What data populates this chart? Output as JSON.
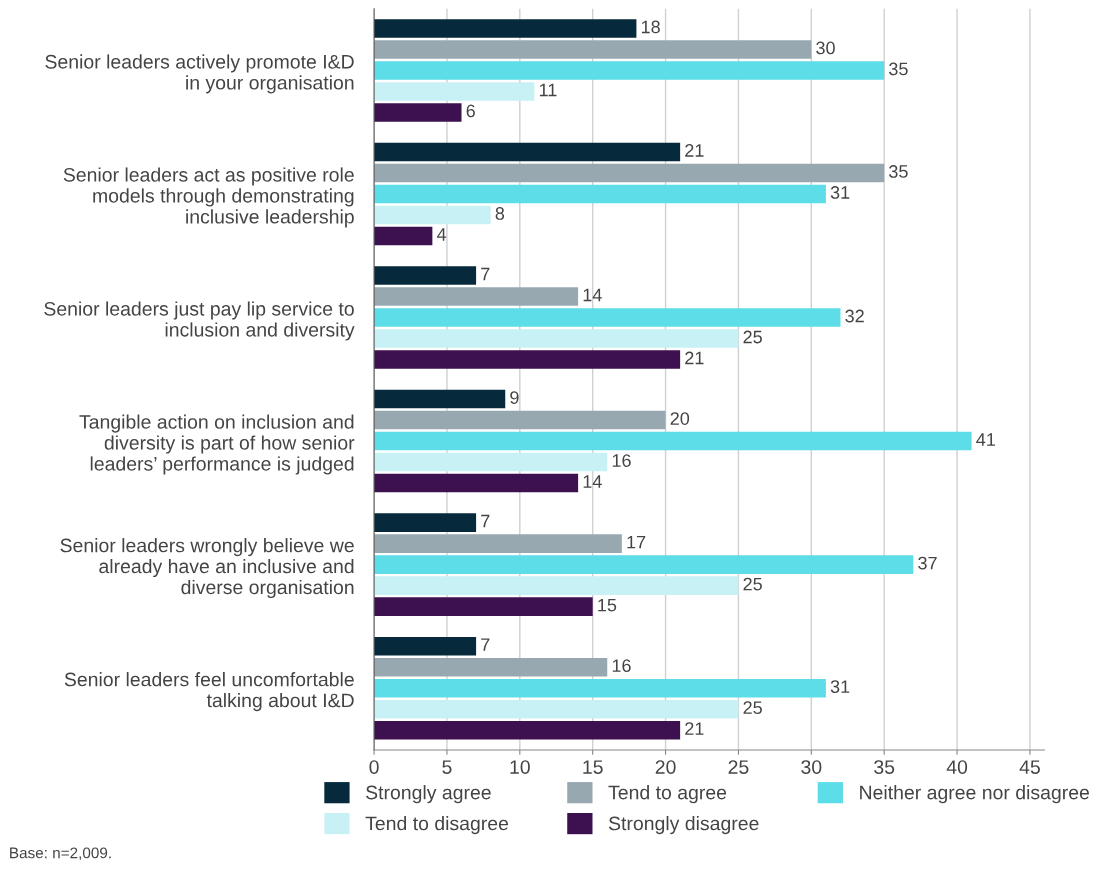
{
  "chart_data": {
    "type": "bar",
    "orientation": "horizontal",
    "categories": [
      "Senior leaders actively promote I&D\nin your organisation",
      "Senior leaders act as positive role\nmodels through demonstrating\ninclusive leadership",
      "Senior leaders just pay lip service to\ninclusion and diversity",
      "Tangible action on inclusion and\ndiversity is part of how senior\nleaders’ performance is judged",
      "Senior leaders wrongly believe we\nalready have an inclusive and\ndiverse organisation",
      "Senior leaders feel uncomfortable\ntalking about I&D"
    ],
    "series": [
      {
        "name": "Strongly agree",
        "color": "#062a3b",
        "values": [
          18,
          21,
          7,
          9,
          7,
          7
        ]
      },
      {
        "name": "Tend to agree",
        "color": "#97a8b0",
        "values": [
          30,
          35,
          14,
          20,
          17,
          16
        ]
      },
      {
        "name": "Neither agree nor disagree",
        "color": "#5ddde8",
        "values": [
          35,
          31,
          32,
          41,
          37,
          31
        ]
      },
      {
        "name": "Tend to disagree",
        "color": "#c8f1f6",
        "values": [
          11,
          8,
          25,
          16,
          25,
          25
        ]
      },
      {
        "name": "Strongly disagree",
        "color": "#3d1150",
        "values": [
          6,
          4,
          21,
          14,
          15,
          21
        ]
      }
    ],
    "xlim": [
      0,
      46
    ],
    "xticks": [
      0,
      5,
      10,
      15,
      20,
      25,
      30,
      35,
      40,
      45
    ],
    "grid": "x",
    "legend": "bottom",
    "data_labels": true,
    "annotations": [
      "Base: n=2,009."
    ]
  }
}
